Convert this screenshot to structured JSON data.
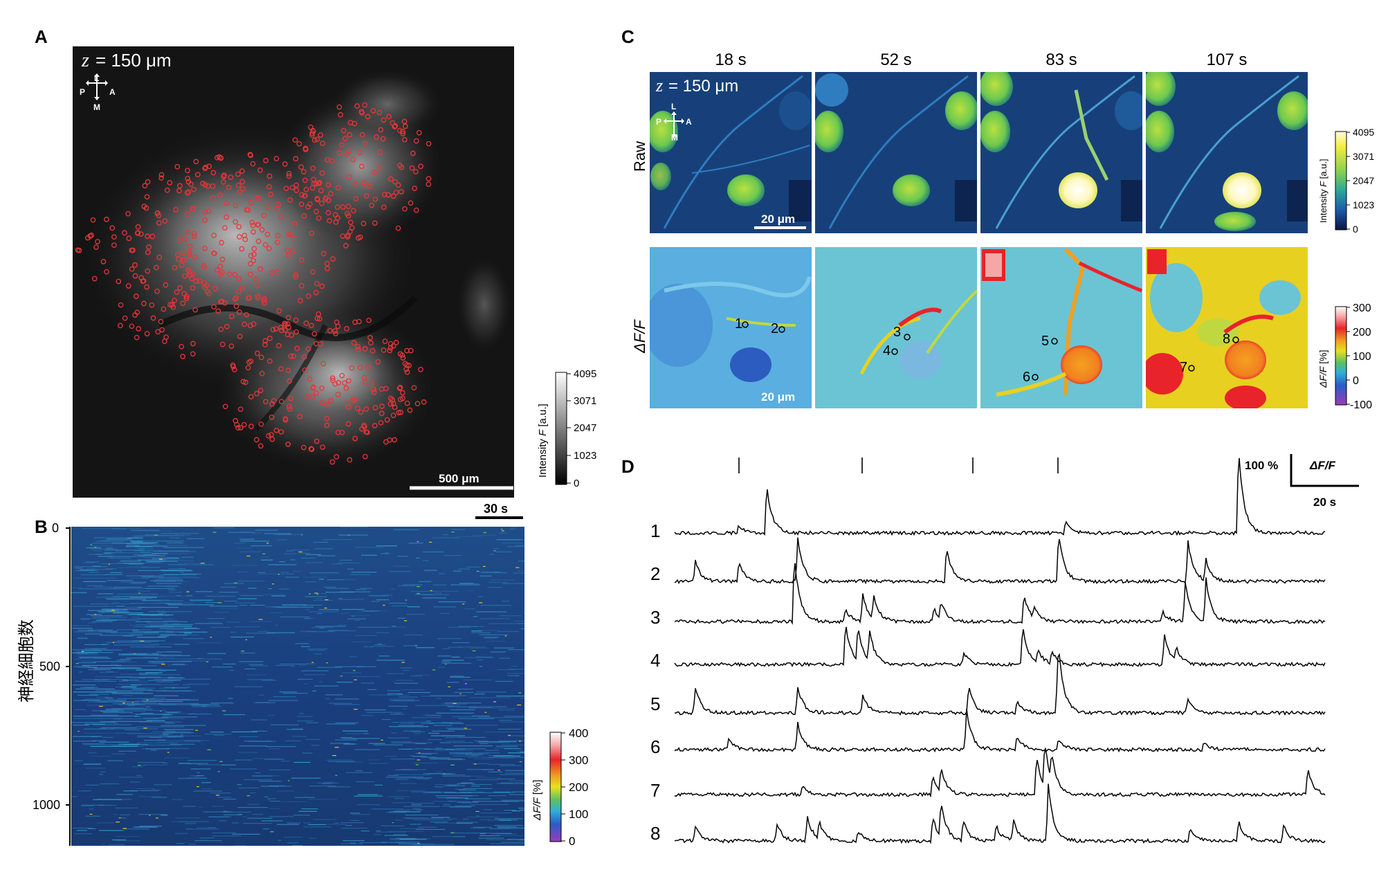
{
  "panels": {
    "A": {
      "label": "A",
      "z_label": "= 150 μm",
      "z_symbol": "z",
      "orientation": {
        "L": "L",
        "M": "M",
        "P": "P",
        "A": "A"
      },
      "scalebar": "500 μm",
      "colorbar": {
        "title_prefix": "Intensity ",
        "title_var": "F",
        "title_suffix": " [a.u.]",
        "ticks": [
          "4095",
          "3071",
          "2047",
          "1023",
          "0"
        ]
      }
    },
    "B": {
      "label": "B",
      "ylabel": "神経細胞数",
      "yticks": [
        "0",
        "500",
        "1000"
      ],
      "scalebar": "30 s",
      "colorbar": {
        "title_var": "ΔF/F",
        "title_suffix": " [%]",
        "ticks": [
          "400",
          "300",
          "200",
          "100",
          "0"
        ]
      }
    },
    "C": {
      "label": "C",
      "times": [
        "18 s",
        "52 s",
        "83 s",
        "107 s"
      ],
      "row_raw": "Raw",
      "row_df": "ΔF/F",
      "z_label": "= 150 μm",
      "z_symbol": "z",
      "orientation": {
        "L": "L",
        "M": "M",
        "P": "P",
        "A": "A"
      },
      "scalebar_raw": "20 μm",
      "scalebar_df": "20 μm",
      "rois": [
        "1",
        "2",
        "3",
        "4",
        "5",
        "6",
        "7",
        "8"
      ],
      "colorbar_raw": {
        "title_prefix": "Intensity ",
        "title_var": "F",
        "title_suffix": " [a.u.]",
        "ticks": [
          "4095",
          "3071",
          "2047",
          "1023",
          "0"
        ]
      },
      "colorbar_df": {
        "title_var": "ΔF/F",
        "title_suffix": " [%]",
        "ticks": [
          "300",
          "200",
          "100",
          "0",
          "-100"
        ]
      }
    },
    "D": {
      "label": "D",
      "trace_labels": [
        "1",
        "2",
        "3",
        "4",
        "5",
        "6",
        "7",
        "8"
      ],
      "scale_y": "100 %",
      "scale_ylabel": "ΔF/F",
      "scale_x": "20 s"
    }
  },
  "colors": {
    "roi_red": "#e8363a",
    "heat_bg": "#1a3f7e",
    "trace": "#000000"
  }
}
